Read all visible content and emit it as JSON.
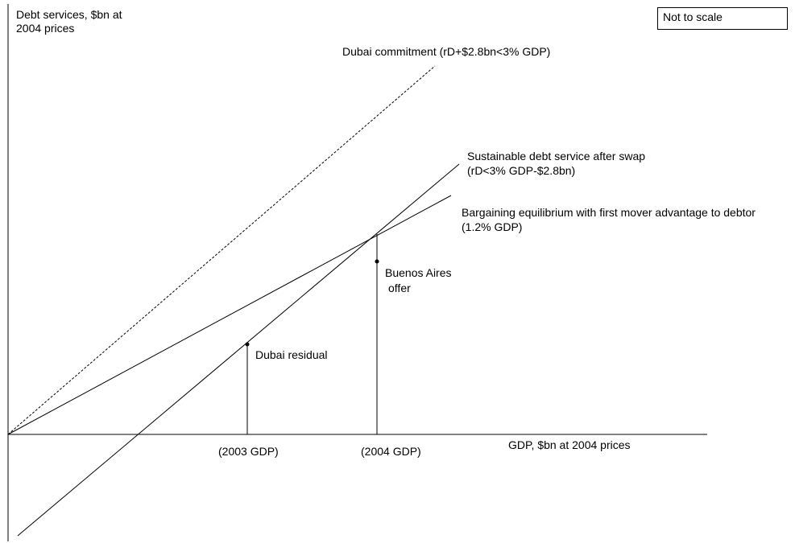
{
  "y_axis_label": [
    "Debt services, $bn at",
    "2004 prices"
  ],
  "x_axis_label": "GDP, $bn at 2004 prices",
  "scale_note": "Not to scale",
  "lines": {
    "dubai_commitment": "Dubai commitment (rD+$2.8bn<3% GDP)",
    "sustainable": [
      "Sustainable debt service after swap",
      "(rD<3% GDP-$2.8bn)"
    ],
    "bargaining": [
      "Bargaining equilibrium with first mover advantage to debtor",
      "(1.2% GDP)"
    ]
  },
  "points": {
    "dubai_residual": "Dubai residual",
    "buenos_aires": [
      "Buenos Aires",
      "offer"
    ]
  },
  "ticks": {
    "gdp_2003": "(2003 GDP)",
    "gdp_2004": "(2004 GDP)"
  },
  "colors": {
    "ink": "#000000",
    "background": "#ffffff"
  }
}
